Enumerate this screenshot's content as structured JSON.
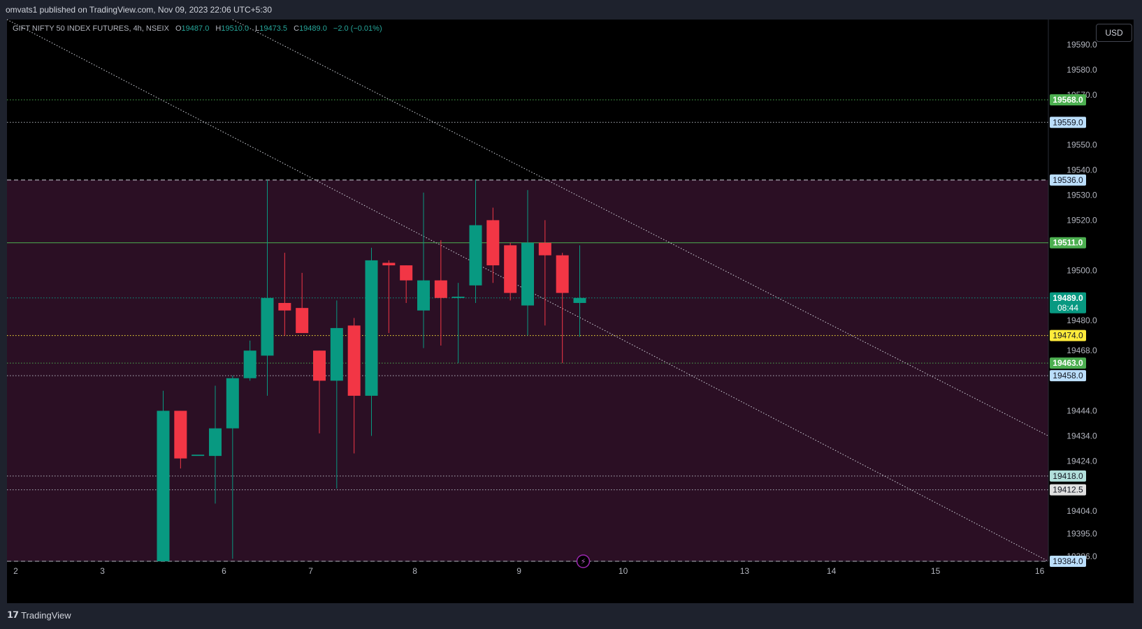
{
  "header": {
    "published_text": "omvats1 published on TradingView.com, Nov 09, 2023 22:06 UTC+5:30"
  },
  "legend": {
    "symbol": "GIFT NIFTY 50 INDEX FUTURES, 4h, NSEIX",
    "o_label": "O",
    "o_value": "19487.0",
    "h_label": "H",
    "h_value": "19510.0",
    "l_label": "L",
    "l_value": "19473.5",
    "c_label": "C",
    "c_value": "19489.0",
    "change": "−2.0 (−0.01%)"
  },
  "currency_button": "USD",
  "footer": {
    "brand": "TradingView"
  },
  "chart_data": {
    "type": "candlestick",
    "colors": {
      "up": "#089981",
      "down": "#f23645",
      "background": "#000000",
      "zone": "#2b0f24"
    },
    "y_range": [
      19384,
      19600
    ],
    "x_range": [
      0,
      60
    ],
    "axis_ticks": [
      {
        "label": "19590.0",
        "y": 19590
      },
      {
        "label": "19580.0",
        "y": 19580
      },
      {
        "label": "19570.0",
        "y": 19570
      },
      {
        "label": "19550.0",
        "y": 19550
      },
      {
        "label": "19540.0",
        "y": 19540
      },
      {
        "label": "19530.0",
        "y": 19530
      },
      {
        "label": "19520.0",
        "y": 19520
      },
      {
        "label": "19500.0",
        "y": 19500
      },
      {
        "label": "19480.0",
        "y": 19480
      },
      {
        "label": "19468.0",
        "y": 19468
      },
      {
        "label": "19444.0",
        "y": 19444
      },
      {
        "label": "19434.0",
        "y": 19434
      },
      {
        "label": "19424.0",
        "y": 19424
      },
      {
        "label": "19404.0",
        "y": 19404
      },
      {
        "label": "19395.0",
        "y": 19395
      },
      {
        "label": "19386.0",
        "y": 19386
      }
    ],
    "x_ticks": [
      {
        "label": "2",
        "x": 0.5
      },
      {
        "label": "3",
        "x": 5.5
      },
      {
        "label": "6",
        "x": 12.5
      },
      {
        "label": "7",
        "x": 17.5
      },
      {
        "label": "8",
        "x": 23.5
      },
      {
        "label": "9",
        "x": 29.5
      },
      {
        "label": "10",
        "x": 35.5
      },
      {
        "label": "13",
        "x": 42.5
      },
      {
        "label": "14",
        "x": 47.5
      },
      {
        "label": "15",
        "x": 53.5
      },
      {
        "label": "16",
        "x": 59.5
      }
    ],
    "zone": {
      "top": 19536,
      "bottom": 19384
    },
    "levels": [
      {
        "value": 19568,
        "label": "19568.0",
        "color": "#4caf50",
        "label_bg": "#4caf50",
        "label_fg": "#ffffff",
        "style": "dotted"
      },
      {
        "value": 19559,
        "label": "19559.0",
        "color": "#b2b5be",
        "label_bg": "#bbdefb",
        "label_fg": "#131722",
        "style": "dotted"
      },
      {
        "value": 19536,
        "label": "19536.0",
        "color": "#d1d4dc",
        "label_bg": "#bbdefb",
        "label_fg": "#131722",
        "style": "dashed"
      },
      {
        "value": 19511,
        "label": "19511.0",
        "color": "#4caf50",
        "label_bg": "#4caf50",
        "label_fg": "#ffffff",
        "style": "solid"
      },
      {
        "value": 19474,
        "label": "19474.0",
        "color": "#ffeb3b",
        "label_bg": "#ffeb3b",
        "label_fg": "#131722",
        "style": "dotted"
      },
      {
        "value": 19463,
        "label": "19463.0",
        "color": "#4caf50",
        "label_bg": "#4caf50",
        "label_fg": "#ffffff",
        "style": "dotted"
      },
      {
        "value": 19458,
        "label": "19458.0",
        "color": "#b2b5be",
        "label_bg": "#bbdefb",
        "label_fg": "#131722",
        "style": "dotted"
      },
      {
        "value": 19418,
        "label": "19418.0",
        "color": "#b2b5be",
        "label_bg": "#b2dfdb",
        "label_fg": "#131722",
        "style": "dotted"
      },
      {
        "value": 19412.5,
        "label": "19412.5",
        "color": "#b2b5be",
        "label_bg": "#e0e0e0",
        "label_fg": "#131722",
        "style": "dotted"
      },
      {
        "value": 19384,
        "label": "19384.0",
        "color": "#b2b5be",
        "label_bg": "#bbdefb",
        "label_fg": "#131722",
        "style": "dashed"
      }
    ],
    "last_price": {
      "value": 19489,
      "label": "19489.0",
      "countdown": "08:44",
      "color": "#089981"
    },
    "trendlines": [
      {
        "x1": 0,
        "y1": 19600,
        "x2": 60,
        "y2": 19384
      },
      {
        "x1": 13,
        "y1": 19600,
        "x2": 60,
        "y2": 19434
      }
    ],
    "candles": [
      {
        "x": 9,
        "o": 19384,
        "h": 19452,
        "l": 19384,
        "c": 19444
      },
      {
        "x": 10,
        "o": 19444,
        "h": 19444,
        "l": 19421,
        "c": 19425
      },
      {
        "x": 11,
        "o": 19426,
        "h": 19426,
        "l": 19426,
        "c": 19426.5
      },
      {
        "x": 12,
        "o": 19426,
        "h": 19454,
        "l": 19407,
        "c": 19437
      },
      {
        "x": 13,
        "o": 19437,
        "h": 19458,
        "l": 19385,
        "c": 19457
      },
      {
        "x": 14,
        "o": 19457,
        "h": 19472,
        "l": 19456,
        "c": 19468
      },
      {
        "x": 15,
        "o": 19466,
        "h": 19536,
        "l": 19450,
        "c": 19489
      },
      {
        "x": 16,
        "o": 19487,
        "h": 19507,
        "l": 19474,
        "c": 19484
      },
      {
        "x": 17,
        "o": 19485,
        "h": 19499,
        "l": 19475,
        "c": 19475
      },
      {
        "x": 18,
        "o": 19468,
        "h": 19468,
        "l": 19435,
        "c": 19456
      },
      {
        "x": 19,
        "o": 19456,
        "h": 19488,
        "l": 19413,
        "c": 19477
      },
      {
        "x": 20,
        "o": 19478,
        "h": 19481,
        "l": 19427,
        "c": 19450
      },
      {
        "x": 21,
        "o": 19450,
        "h": 19509,
        "l": 19434,
        "c": 19504
      },
      {
        "x": 22,
        "o": 19503,
        "h": 19504,
        "l": 19475,
        "c": 19502
      },
      {
        "x": 23,
        "o": 19502,
        "h": 19502,
        "l": 19487,
        "c": 19496
      },
      {
        "x": 24,
        "o": 19484,
        "h": 19531,
        "l": 19469,
        "c": 19496
      },
      {
        "x": 25,
        "o": 19496,
        "h": 19512,
        "l": 19470,
        "c": 19489
      },
      {
        "x": 26,
        "o": 19489,
        "h": 19495,
        "l": 19463,
        "c": 19489.5
      },
      {
        "x": 27,
        "o": 19494,
        "h": 19536,
        "l": 19487,
        "c": 19518
      },
      {
        "x": 28,
        "o": 19520,
        "h": 19525,
        "l": 19495,
        "c": 19502
      },
      {
        "x": 29,
        "o": 19510,
        "h": 19511,
        "l": 19488,
        "c": 19491
      },
      {
        "x": 30,
        "o": 19486,
        "h": 19532,
        "l": 19474,
        "c": 19511
      },
      {
        "x": 31,
        "o": 19511,
        "h": 19520,
        "l": 19478,
        "c": 19506
      },
      {
        "x": 32,
        "o": 19506,
        "h": 19507,
        "l": 19463,
        "c": 19491
      },
      {
        "x": 33,
        "o": 19487,
        "h": 19510,
        "l": 19473.5,
        "c": 19489
      }
    ]
  }
}
